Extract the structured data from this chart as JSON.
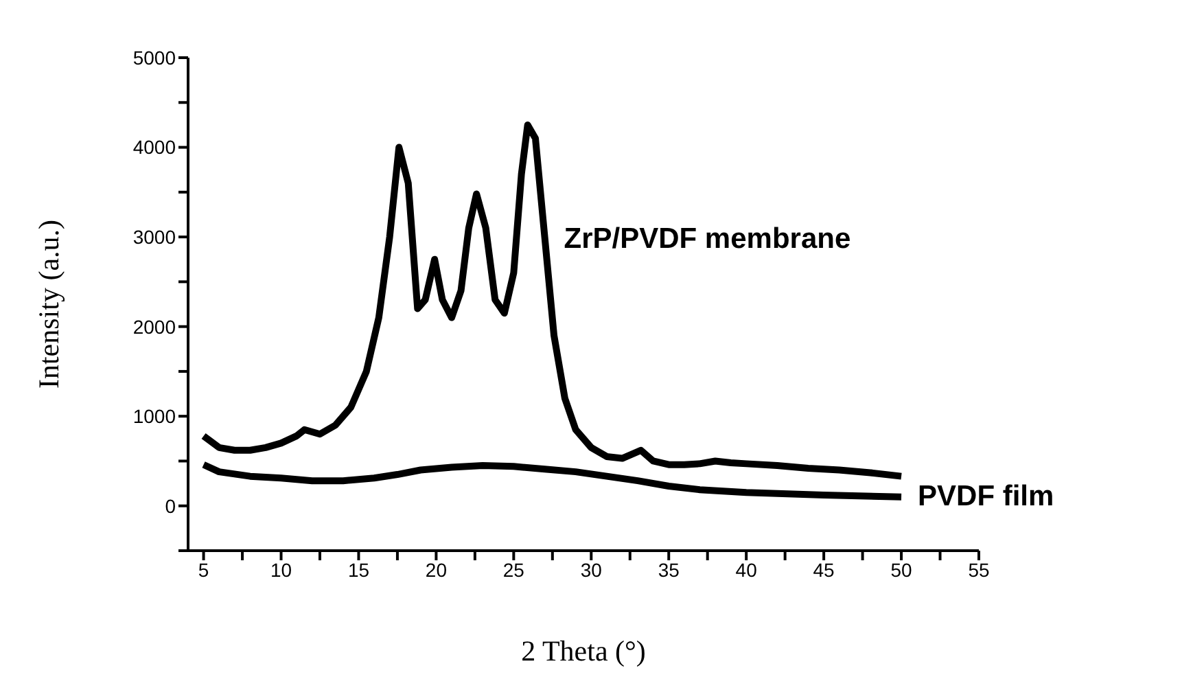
{
  "chart_data": {
    "type": "line",
    "xlabel": "2 Theta (°)",
    "ylabel": "Intensity (a.u.)",
    "xlim": [
      4,
      55
    ],
    "xticks": [
      5,
      {
        "value": 7.5,
        "label": null
      },
      10,
      {
        "value": 12.5,
        "label": null
      },
      15,
      {
        "value": 17.5,
        "label": null
      },
      20,
      {
        "value": 22.5,
        "label": null
      },
      25,
      {
        "value": 27.5,
        "label": null
      },
      30,
      {
        "value": 32.5,
        "label": null
      },
      35,
      {
        "value": 37.5,
        "label": null
      },
      40,
      {
        "value": 42.5,
        "label": null
      },
      45,
      {
        "value": 47.5,
        "label": null
      },
      50,
      {
        "value": 52.5,
        "label": null
      },
      55
    ],
    "ylim": [
      -500,
      5000
    ],
    "yticks": [
      {
        "value": -500,
        "label": null
      },
      0,
      {
        "value": 500,
        "label": null
      },
      1000,
      {
        "value": 1500,
        "label": null
      },
      2000,
      {
        "value": 2500,
        "label": null
      },
      3000,
      {
        "value": 3500,
        "label": null
      },
      4000,
      {
        "value": 4500,
        "label": null
      },
      5000
    ],
    "grid": false,
    "legend": false,
    "marker": "none",
    "line_style": "solid",
    "series": [
      {
        "name": "ZrP/PVDF membrane",
        "color": "#000000",
        "x": [
          5,
          6,
          7,
          8,
          9,
          10,
          11,
          11.5,
          12.5,
          13.5,
          14.5,
          15.5,
          16.3,
          17,
          17.6,
          18.2,
          18.8,
          19.3,
          19.9,
          20.4,
          21,
          21.6,
          22.1,
          22.6,
          23.2,
          23.8,
          24.4,
          25,
          25.5,
          25.9,
          26.4,
          27,
          27.6,
          28.3,
          29,
          30,
          31,
          32,
          33.2,
          34,
          35,
          36,
          37,
          38,
          39,
          40,
          42,
          44,
          46,
          48,
          50
        ],
        "values": [
          780,
          650,
          620,
          620,
          650,
          700,
          780,
          850,
          800,
          900,
          1100,
          1500,
          2100,
          3000,
          4000,
          3600,
          2200,
          2300,
          2750,
          2300,
          2100,
          2400,
          3100,
          3480,
          3100,
          2300,
          2150,
          2600,
          3700,
          4250,
          4100,
          3000,
          1900,
          1200,
          850,
          650,
          550,
          530,
          620,
          500,
          460,
          460,
          470,
          500,
          480,
          470,
          450,
          420,
          400,
          370,
          330
        ]
      },
      {
        "name": "PVDF film",
        "color": "#000000",
        "x": [
          5,
          6,
          8,
          10,
          12,
          14,
          16,
          17.5,
          19,
          21,
          23,
          25,
          27,
          29,
          31,
          33,
          35,
          37,
          40,
          45,
          50
        ],
        "values": [
          460,
          380,
          330,
          310,
          280,
          280,
          310,
          350,
          400,
          430,
          450,
          440,
          410,
          380,
          330,
          280,
          220,
          180,
          150,
          120,
          100
        ]
      }
    ]
  }
}
